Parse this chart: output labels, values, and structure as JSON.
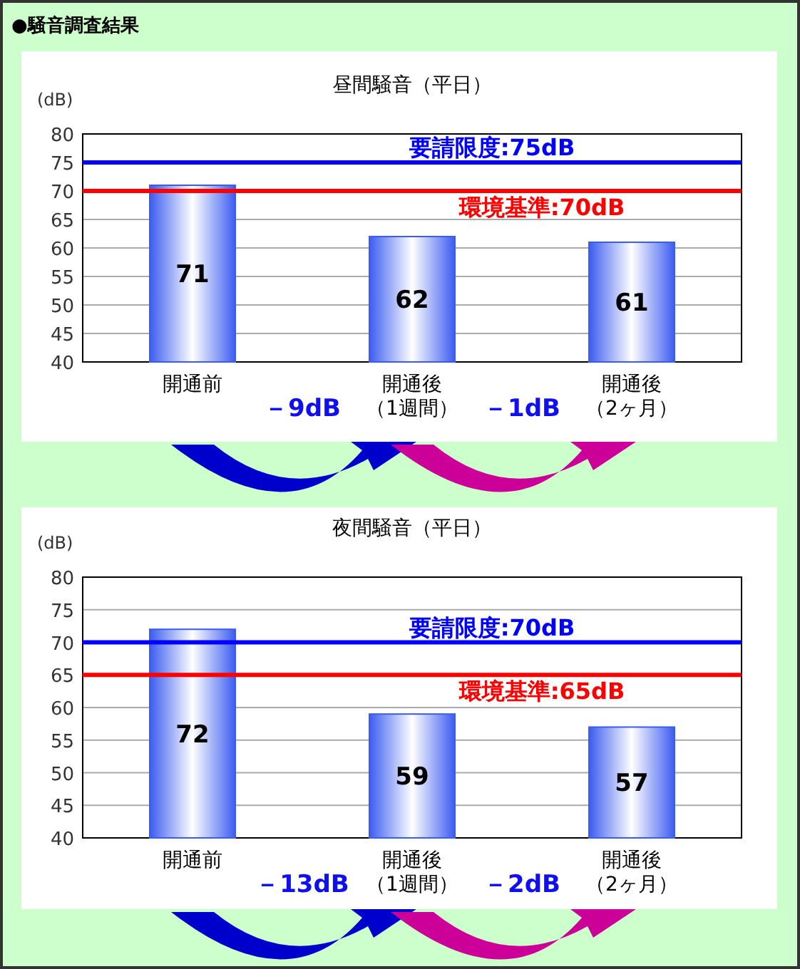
{
  "chart_data": [
    {
      "type": "bar",
      "subtitle": "●騒音調査結果",
      "title": "昼間騒音（平日）",
      "ylabel": "(dB)",
      "categories": [
        "開通前",
        "開通後（1週間）",
        "開通後（2ヶ月）"
      ],
      "values": [
        71,
        62,
        61
      ],
      "color": "#3c5cf0",
      "data_labels": true,
      "ylim": [
        40,
        80
      ],
      "yticks": [
        40,
        45,
        50,
        55,
        60,
        65,
        70,
        75,
        80
      ],
      "grid": "y",
      "ref_lines": [
        {
          "axis": "y",
          "value": 75,
          "label": "要請限度:75dB",
          "color": "#0000ff"
        },
        {
          "axis": "y",
          "value": 70,
          "label": "環境基準:70dB",
          "color": "#ff0000"
        }
      ],
      "annotations": [
        "－9dB",
        "－1dB"
      ]
    },
    {
      "type": "bar",
      "title": "夜間騒音（平日）",
      "ylabel": "(dB)",
      "categories": [
        "開通前",
        "開通後（1週間）",
        "開通後（2ヶ月）"
      ],
      "values": [
        72,
        59,
        57
      ],
      "color": "#3c5cf0",
      "data_labels": true,
      "ylim": [
        40,
        80
      ],
      "yticks": [
        40,
        45,
        50,
        55,
        60,
        65,
        70,
        75,
        80
      ],
      "grid": "y",
      "ref_lines": [
        {
          "axis": "y",
          "value": 70,
          "label": "要請限度:70dB",
          "color": "#0000ff"
        },
        {
          "axis": "y",
          "value": 65,
          "label": "環境基準:65dB",
          "color": "#ff0000"
        }
      ],
      "annotations": [
        "－13dB",
        "－2dB"
      ]
    }
  ]
}
